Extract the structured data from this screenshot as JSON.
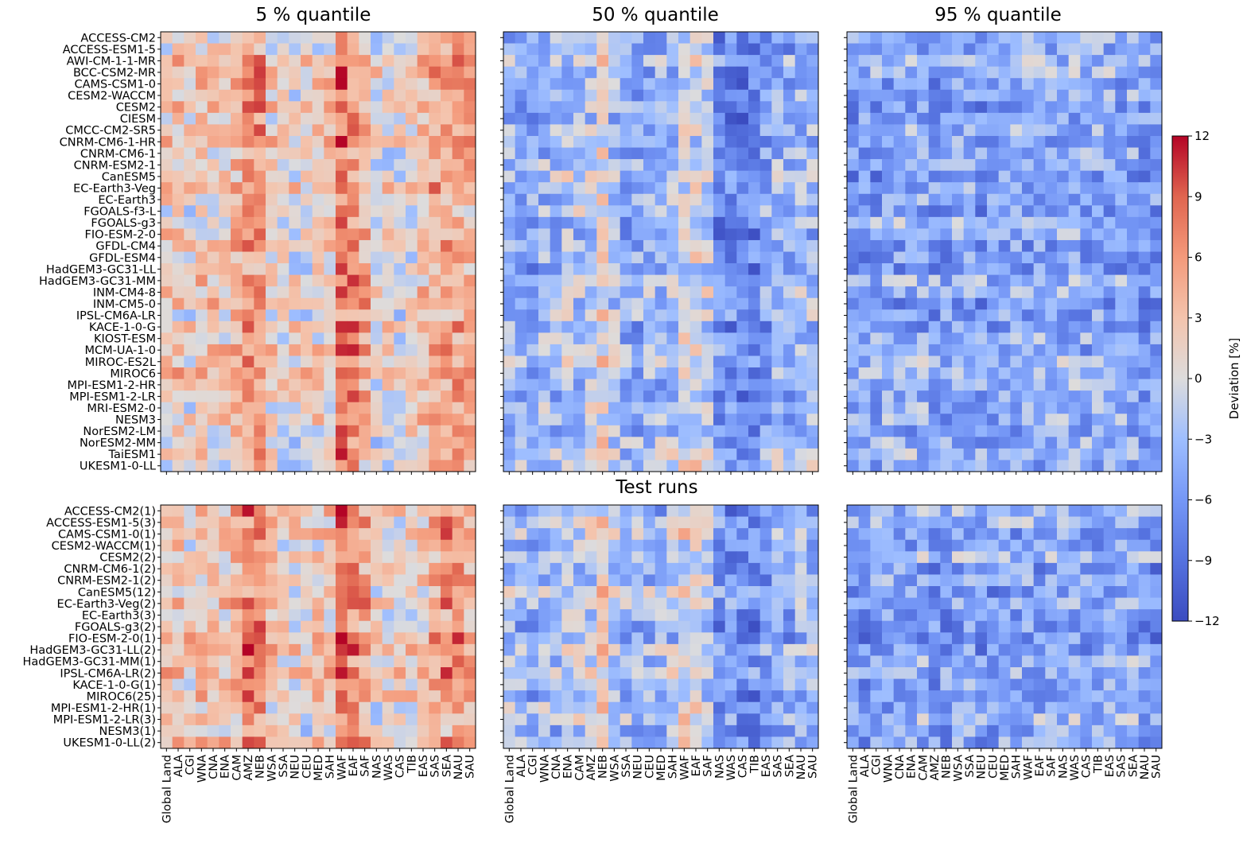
{
  "chart_data": [
    {
      "type": "heatmap",
      "layout": "grid 2 rows x 3 columns of heatmap panels sharing row and column labels",
      "panel_titles": [
        "5 % quantile",
        "50 % quantile",
        "95 % quantile"
      ],
      "row_section_titles": [
        "",
        "Test runs"
      ],
      "columns": [
        "Global Land",
        "ALA",
        "CGI",
        "WNA",
        "CNA",
        "ENA",
        "CAM",
        "AMZ",
        "NEB",
        "WSA",
        "SSA",
        "NEU",
        "CEU",
        "MED",
        "SAH",
        "WAF",
        "EAF",
        "SAF",
        "NAS",
        "WAS",
        "CAS",
        "TIB",
        "EAS",
        "SAS",
        "SEA",
        "NAU",
        "SAU"
      ],
      "rows_top": [
        "ACCESS-CM2",
        "ACCESS-ESM1-5",
        "AWI-CM-1-1-MR",
        "BCC-CSM2-MR",
        "CAMS-CSM1-0",
        "CESM2-WACCM",
        "CESM2",
        "CIESM",
        "CMCC-CM2-SR5",
        "CNRM-CM6-1-HR",
        "CNRM-CM6-1",
        "CNRM-ESM2-1",
        "CanESM5",
        "EC-Earth3-Veg",
        "EC-Earth3",
        "FGOALS-f3-L",
        "FGOALS-g3",
        "FIO-ESM-2-0",
        "GFDL-CM4",
        "GFDL-ESM4",
        "HadGEM3-GC31-LL",
        "HadGEM3-GC31-MM",
        "INM-CM4-8",
        "INM-CM5-0",
        "IPSL-CM6A-LR",
        "KACE-1-0-G",
        "KIOST-ESM",
        "MCM-UA-1-0",
        "MIROC-ES2L",
        "MIROC6",
        "MPI-ESM1-2-HR",
        "MPI-ESM1-2-LR",
        "MRI-ESM2-0",
        "NESM3",
        "NorESM2-LM",
        "NorESM2-MM",
        "TaiESM1",
        "UKESM1-0-LL"
      ],
      "rows_bottom": [
        "ACCESS-CM2(1)",
        "ACCESS-ESM1-5(3)",
        "CAMS-CSM1-0(1)",
        "CESM2-WACCM(1)",
        "CESM2(2)",
        "CNRM-CM6-1(2)",
        "CNRM-ESM2-1(2)",
        "CanESM5(12)",
        "EC-Earth3-Veg(2)",
        "EC-Earth3(3)",
        "FGOALS-g3(2)",
        "FIO-ESM-2-0(1)",
        "HadGEM3-GC31-LL(2)",
        "HadGEM3-GC31-MM(1)",
        "IPSL-CM6A-LR(2)",
        "KACE-1-0-G(1)",
        "MIROC6(25)",
        "MPI-ESM1-2-HR(1)",
        "MPI-ESM1-2-LR(3)",
        "NESM3(1)",
        "UKESM1-0-LL(2)"
      ],
      "colorbar": {
        "label": "Deviation [%]",
        "colormap": "coolwarm",
        "range": [
          -12,
          12
        ],
        "ticks": [
          12,
          9,
          6,
          3,
          0,
          -3,
          -6,
          -9,
          -12
        ],
        "tick_labels": [
          "12",
          "9",
          "6",
          "3",
          "0",
          "−3",
          "−6",
          "−9",
          "−12"
        ]
      },
      "value_model": {
        "panel_base_deviation_percent": [
          3.5,
          -3.0,
          -3.5
        ],
        "note": "approximate"
      },
      "colors": {
        "min": "#3b4cc0",
        "mid": "#dddddd",
        "max": "#b40426"
      }
    }
  ]
}
